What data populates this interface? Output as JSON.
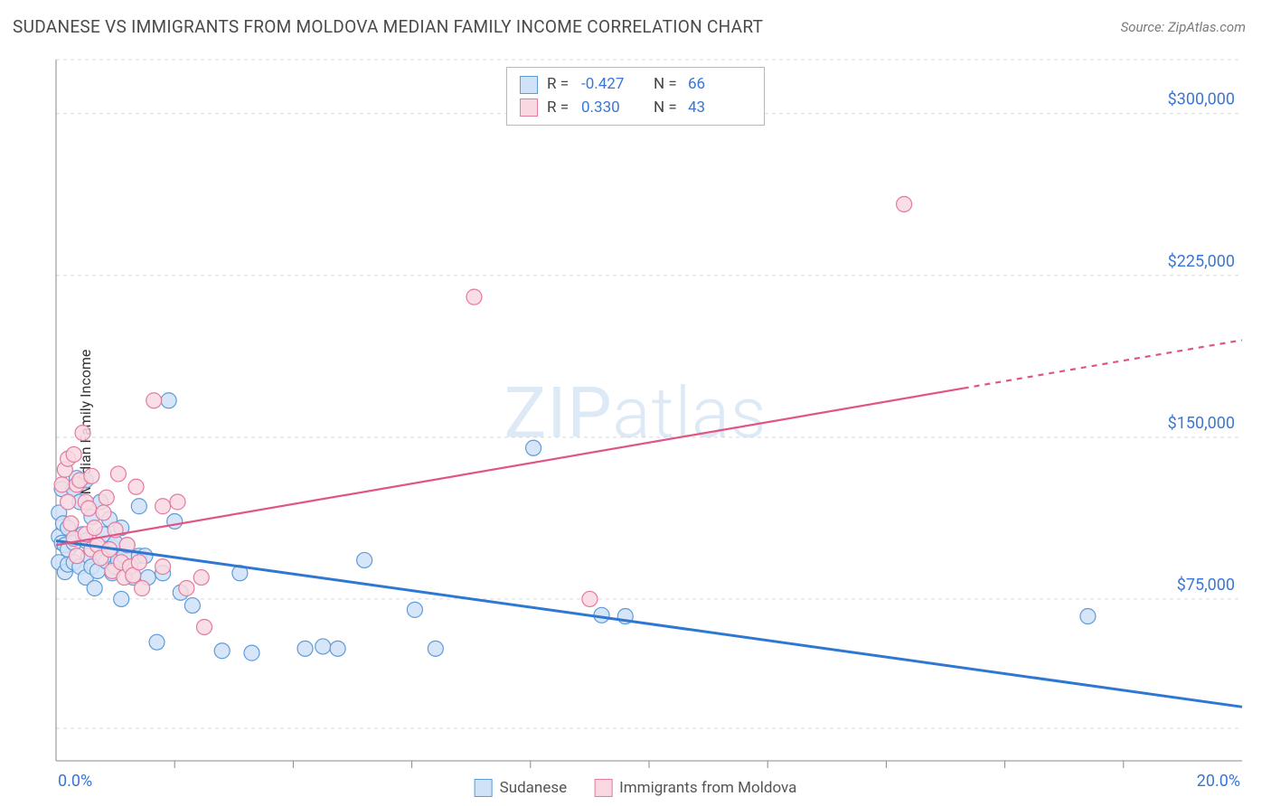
{
  "title": "SUDANESE VS IMMIGRANTS FROM MOLDOVA MEDIAN FAMILY INCOME CORRELATION CHART",
  "source": "Source: ZipAtlas.com",
  "y_axis_label": "Median Family Income",
  "watermark_bold": "ZIP",
  "watermark_thin": "atlas",
  "chart": {
    "type": "scatter",
    "xlim": [
      0,
      20
    ],
    "ylim": [
      0,
      325000
    ],
    "x_tick_label_min": "0.0%",
    "x_tick_label_max": "20.0%",
    "x_minor_ticks": [
      2,
      4,
      6,
      8,
      10,
      12,
      14,
      16,
      18
    ],
    "y_grid": [
      75000,
      150000,
      225000,
      300000
    ],
    "y_tick_labels": [
      "$75,000",
      "$150,000",
      "$225,000",
      "$300,000"
    ],
    "y_dashed": [
      15000,
      325000
    ],
    "plot_bg": "#ffffff",
    "grid_color": "#d9d9d9",
    "axis_color": "#888888",
    "tick_label_color": "#3a76d6",
    "marker_radius": 8.5,
    "marker_stroke_width": 1.2,
    "series": [
      {
        "name": "Sudanese",
        "fill": "#cfe2f7",
        "stroke": "#5f9bd9",
        "line_color": "#2f78d1",
        "line_width": 3,
        "regression": {
          "x1": 0,
          "y1": 102000,
          "x2": 20,
          "y2": 25000
        },
        "points": [
          [
            0.05,
            104000
          ],
          [
            0.05,
            115000
          ],
          [
            0.05,
            92000
          ],
          [
            0.1,
            101000
          ],
          [
            0.1,
            126000
          ],
          [
            0.12,
            110000
          ],
          [
            0.15,
            87500
          ],
          [
            0.15,
            100000
          ],
          [
            0.2,
            98000
          ],
          [
            0.2,
            91000
          ],
          [
            0.2,
            108000
          ],
          [
            0.3,
            101000
          ],
          [
            0.3,
            92000
          ],
          [
            0.3,
            126000
          ],
          [
            0.35,
            131000
          ],
          [
            0.4,
            90000
          ],
          [
            0.4,
            120000
          ],
          [
            0.45,
            105000
          ],
          [
            0.5,
            85000
          ],
          [
            0.5,
            102000
          ],
          [
            0.5,
            130000
          ],
          [
            0.55,
            95000
          ],
          [
            0.6,
            113000
          ],
          [
            0.6,
            90000
          ],
          [
            0.65,
            80000
          ],
          [
            0.7,
            100000
          ],
          [
            0.7,
            88000
          ],
          [
            0.75,
            120000
          ],
          [
            0.8,
            95000
          ],
          [
            0.8,
            105000
          ],
          [
            0.85,
            92500
          ],
          [
            0.9,
            112000
          ],
          [
            0.95,
            87000
          ],
          [
            0.95,
            99000
          ],
          [
            1.0,
            90000
          ],
          [
            1.0,
            101000
          ],
          [
            1.05,
            93000
          ],
          [
            1.1,
            75000
          ],
          [
            1.1,
            108000
          ],
          [
            1.15,
            95000
          ],
          [
            1.2,
            100000
          ],
          [
            1.25,
            90000
          ],
          [
            1.3,
            85000
          ],
          [
            1.4,
            95000
          ],
          [
            1.4,
            118000
          ],
          [
            1.5,
            95000
          ],
          [
            1.55,
            85000
          ],
          [
            1.7,
            55000
          ],
          [
            1.8,
            87000
          ],
          [
            1.9,
            167000
          ],
          [
            2.0,
            111000
          ],
          [
            2.1,
            78000
          ],
          [
            2.3,
            72000
          ],
          [
            2.8,
            51000
          ],
          [
            3.1,
            87000
          ],
          [
            3.3,
            50000
          ],
          [
            4.2,
            52000
          ],
          [
            4.5,
            53000
          ],
          [
            4.75,
            52000
          ],
          [
            5.2,
            93000
          ],
          [
            6.05,
            70000
          ],
          [
            6.4,
            52000
          ],
          [
            8.05,
            145000
          ],
          [
            9.2,
            67500
          ],
          [
            9.6,
            67000
          ],
          [
            17.4,
            67000
          ]
        ]
      },
      {
        "name": "Immigrants from Moldova",
        "fill": "#f9d8e1",
        "stroke": "#e27ba0",
        "line_color": "#e15586",
        "line_width": 2.2,
        "regression": {
          "x1": 0,
          "y1": 100000,
          "x2": 20,
          "y2": 195000
        },
        "regression_dash_after_x": 15.3,
        "points": [
          [
            0.1,
            128000
          ],
          [
            0.15,
            135000
          ],
          [
            0.2,
            120000
          ],
          [
            0.2,
            140000
          ],
          [
            0.25,
            110000
          ],
          [
            0.3,
            142000
          ],
          [
            0.3,
            103000
          ],
          [
            0.35,
            128000
          ],
          [
            0.35,
            95000
          ],
          [
            0.4,
            130000
          ],
          [
            0.45,
            152000
          ],
          [
            0.5,
            105000
          ],
          [
            0.5,
            120000
          ],
          [
            0.55,
            117000
          ],
          [
            0.6,
            98000
          ],
          [
            0.6,
            132000
          ],
          [
            0.65,
            108000
          ],
          [
            0.7,
            100000
          ],
          [
            0.75,
            94000
          ],
          [
            0.8,
            115000
          ],
          [
            0.85,
            122000
          ],
          [
            0.9,
            98000
          ],
          [
            0.95,
            88000
          ],
          [
            1.0,
            107000
          ],
          [
            1.05,
            133000
          ],
          [
            1.1,
            92000
          ],
          [
            1.15,
            85000
          ],
          [
            1.2,
            100000
          ],
          [
            1.25,
            90000
          ],
          [
            1.3,
            86000
          ],
          [
            1.35,
            127000
          ],
          [
            1.4,
            92000
          ],
          [
            1.45,
            80000
          ],
          [
            1.65,
            167000
          ],
          [
            1.8,
            90000
          ],
          [
            1.8,
            118000
          ],
          [
            2.05,
            120000
          ],
          [
            2.2,
            80000
          ],
          [
            2.45,
            85000
          ],
          [
            2.5,
            62000
          ],
          [
            7.05,
            215000
          ],
          [
            9.0,
            75000
          ],
          [
            14.3,
            258000
          ]
        ]
      }
    ]
  },
  "legend_top": [
    {
      "fill": "#cfe2f7",
      "stroke": "#5f9bd9",
      "r": "-0.427",
      "n": "66"
    },
    {
      "fill": "#f9d8e1",
      "stroke": "#e27ba0",
      "r": "0.330",
      "n": "43"
    }
  ],
  "legend_top_labels": {
    "r": "R =",
    "n": "N ="
  },
  "legend_bottom": [
    {
      "fill": "#cfe2f7",
      "stroke": "#5f9bd9",
      "label": "Sudanese"
    },
    {
      "fill": "#f9d8e1",
      "stroke": "#e27ba0",
      "label": "Immigrants from Moldova"
    }
  ]
}
